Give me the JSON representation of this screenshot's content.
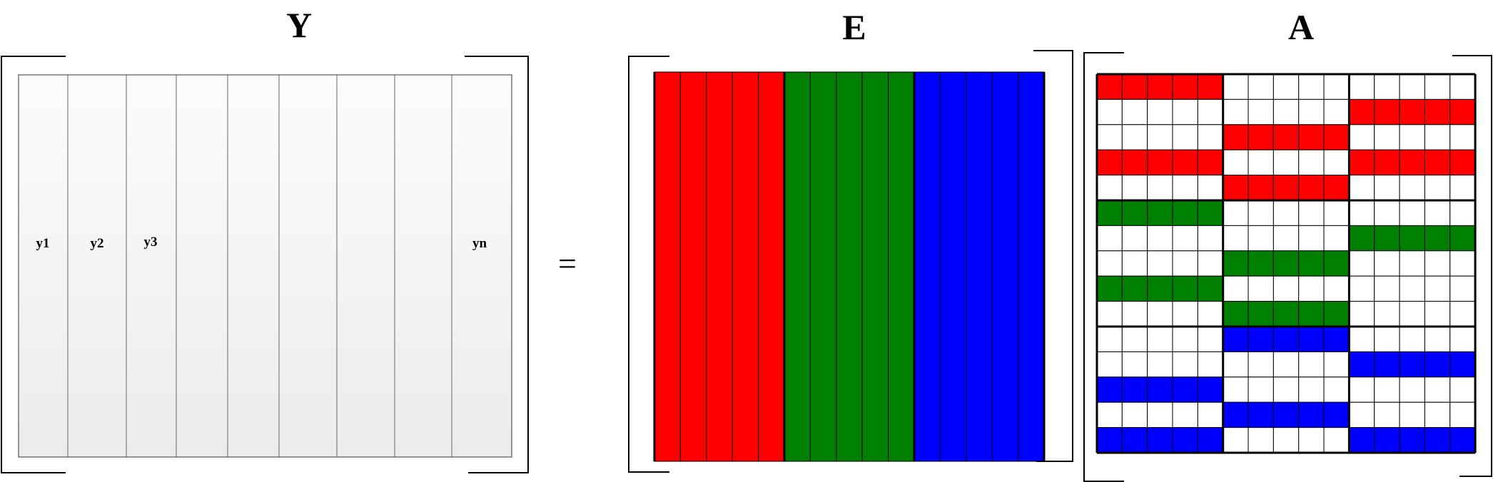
{
  "titles": {
    "y": "Y",
    "e": "E",
    "a": "A"
  },
  "equals_sign": "=",
  "y_matrix": {
    "column_labels": [
      "y1",
      "y2",
      "y3",
      "",
      "",
      "",
      "",
      "",
      "yn"
    ]
  },
  "colors": {
    "red": "#ff0000",
    "green": "#008000",
    "blue": "#0000ff",
    "column_fill_top": "#fcfcfc",
    "column_fill_bottom": "#ececec",
    "grid_line": "#000000"
  },
  "e_matrix": {
    "blocks": [
      "red",
      "green",
      "blue"
    ],
    "columns_per_block": 5
  },
  "a_matrix": {
    "rows": 15,
    "block_columns": 3,
    "columns_per_block": 5,
    "highlighted": [
      [
        "red",
        null,
        null
      ],
      [
        null,
        null,
        "red"
      ],
      [
        null,
        "red",
        null
      ],
      [
        "red",
        null,
        "red"
      ],
      [
        null,
        "red",
        null
      ],
      [
        "green",
        null,
        null
      ],
      [
        null,
        null,
        "green"
      ],
      [
        null,
        "green",
        null
      ],
      [
        "green",
        null,
        null
      ],
      [
        null,
        "green",
        null
      ],
      [
        null,
        "blue",
        null
      ],
      [
        null,
        null,
        "blue"
      ],
      [
        "blue",
        null,
        null
      ],
      [
        null,
        "blue",
        null
      ],
      [
        "blue",
        null,
        "blue"
      ]
    ]
  }
}
